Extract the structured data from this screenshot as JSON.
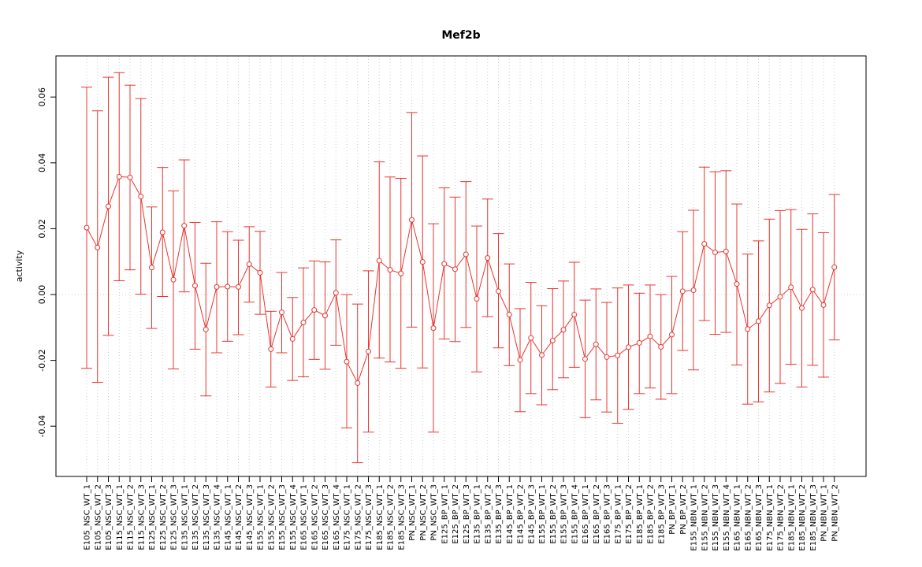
{
  "chart_data": {
    "type": "line",
    "title": "Mef2b",
    "xlabel": "",
    "ylabel": "activity",
    "ylim": [
      -0.055,
      0.072
    ],
    "yticks": [
      -0.04,
      -0.02,
      0.0,
      0.02,
      0.04,
      0.06
    ],
    "ytick_labels": [
      "-0.04",
      "-0.02",
      "0.00",
      "0.02",
      "0.04",
      "0.06"
    ],
    "grid": "vertical dotted at each category; horizontal dotted at zero",
    "colors": {
      "series": "#e8352f",
      "grid": "#cccccc",
      "axis": "#000000"
    },
    "categories": [
      "E105_NSC_WT_1",
      "E105_NSC_WT_2",
      "E105_NSC_WT_3",
      "E115_NSC_WT_1",
      "E115_NSC_WT_2",
      "E115_NSC_WT_3",
      "E125_NSC_WT_1",
      "E125_NSC_WT_2",
      "E125_NSC_WT_3",
      "E135_NSC_WT_1",
      "E135_NSC_WT_2",
      "E135_NSC_WT_3",
      "E135_NSC_WT_4",
      "E145_NSC_WT_1",
      "E145_NSC_WT_2",
      "E145_NSC_WT_3",
      "E155_NSC_WT_1",
      "E155_NSC_WT_2",
      "E155_NSC_WT_3",
      "E155_NSC_WT_4",
      "E165_NSC_WT_1",
      "E165_NSC_WT_2",
      "E165_NSC_WT_3",
      "E165_NSC_WT_4",
      "E175_NSC_WT_1",
      "E175_NSC_WT_2",
      "E175_NSC_WT_3",
      "E185_NSC_WT_1",
      "E185_NSC_WT_2",
      "E185_NSC_WT_3",
      "PN_NSC_WT_1",
      "PN_NSC_WT_2",
      "PN_NSC_WT_3",
      "E125_BP_WT_1",
      "E125_BP_WT_2",
      "E125_BP_WT_3",
      "E135_BP_WT_1",
      "E135_BP_WT_2",
      "E135_BP_WT_3",
      "E145_BP_WT_1",
      "E145_BP_WT_2",
      "E145_BP_WT_3",
      "E155_BP_WT_1",
      "E155_BP_WT_2",
      "E155_BP_WT_3",
      "E155_BP_WT_4",
      "E165_BP_WT_1",
      "E165_BP_WT_2",
      "E165_BP_WT_3",
      "E175_BP_WT_1",
      "E175_BP_WT_2",
      "E185_BP_WT_1",
      "E185_BP_WT_2",
      "E185_BP_WT_3",
      "PN_BP_WT_1",
      "PN_BP_WT_2",
      "E155_NBN_WT_1",
      "E155_NBN_WT_2",
      "E155_NBN_WT_3",
      "E155_NBN_WT_4",
      "E165_NBN_WT_1",
      "E165_NBN_WT_2",
      "E165_NBN_WT_3",
      "E175_NBN_WT_1",
      "E175_NBN_WT_2",
      "E185_NBN_WT_1",
      "E185_NBN_WT_2",
      "E185_NBN_WT_3",
      "PN_NBN_WT_1",
      "PN_NBN_WT_2"
    ],
    "series": [
      {
        "values": [
          0.0203,
          0.0143,
          0.0268,
          0.0358,
          0.0356,
          0.0298,
          0.0082,
          0.0189,
          0.0045,
          0.0209,
          0.0027,
          -0.0106,
          0.0023,
          0.0024,
          0.0023,
          0.0092,
          0.0066,
          -0.0166,
          -0.0054,
          -0.0135,
          -0.0085,
          -0.0047,
          -0.0064,
          0.0005,
          -0.0204,
          -0.0269,
          -0.0173,
          0.0103,
          0.0075,
          0.0064,
          0.0227,
          0.0099,
          -0.0102,
          0.0093,
          0.0077,
          0.0122,
          -0.0013,
          0.0111,
          0.001,
          -0.0061,
          -0.0199,
          -0.0132,
          -0.0184,
          -0.014,
          -0.0107,
          -0.0061,
          -0.0196,
          -0.0151,
          -0.019,
          -0.0185,
          -0.016,
          -0.0147,
          -0.0127,
          -0.0159,
          -0.0122,
          0.001,
          0.0013,
          0.0154,
          0.0128,
          0.0131,
          0.0032,
          -0.0105,
          -0.0081,
          -0.0033,
          -0.0007,
          0.0022,
          -0.0041,
          0.0015,
          -0.0032,
          0.0083
        ],
        "lower": [
          -0.0224,
          -0.0267,
          -0.0124,
          0.0042,
          0.0075,
          0.0001,
          -0.0103,
          -0.0006,
          -0.0226,
          0.0008,
          -0.0166,
          -0.0308,
          -0.0177,
          -0.0142,
          -0.0122,
          -0.0023,
          -0.006,
          -0.0281,
          -0.0177,
          -0.0261,
          -0.025,
          -0.0197,
          -0.0227,
          -0.0154,
          -0.0405,
          -0.0511,
          -0.0418,
          -0.0193,
          -0.0205,
          -0.0224,
          -0.0099,
          -0.0223,
          -0.0418,
          -0.0135,
          -0.0143,
          -0.01,
          -0.0235,
          -0.0067,
          -0.0162,
          -0.0216,
          -0.0356,
          -0.0301,
          -0.0335,
          -0.0289,
          -0.0253,
          -0.0221,
          -0.0374,
          -0.032,
          -0.0357,
          -0.0391,
          -0.0349,
          -0.0301,
          -0.0284,
          -0.0318,
          -0.0301,
          -0.017,
          -0.0229,
          -0.0079,
          -0.0121,
          -0.0115,
          -0.0214,
          -0.0333,
          -0.0326,
          -0.0296,
          -0.027,
          -0.0212,
          -0.0281,
          -0.0215,
          -0.0251,
          -0.0138
        ],
        "upper": [
          0.063,
          0.0558,
          0.066,
          0.0674,
          0.0636,
          0.0595,
          0.0266,
          0.0386,
          0.0315,
          0.0409,
          0.0219,
          0.0095,
          0.0221,
          0.0191,
          0.0165,
          0.0206,
          0.0192,
          -0.0051,
          0.0067,
          -0.0009,
          0.0081,
          0.0102,
          0.0099,
          0.0166,
          0.0,
          -0.0029,
          0.0072,
          0.0403,
          0.0357,
          0.0353,
          0.0553,
          0.0421,
          0.0215,
          0.0324,
          0.0296,
          0.0343,
          0.0208,
          0.029,
          0.0185,
          0.0093,
          -0.0043,
          0.0037,
          -0.0034,
          0.0018,
          0.0041,
          0.0098,
          -0.0017,
          0.0017,
          -0.0024,
          0.002,
          0.0029,
          0.0004,
          0.0029,
          0.0,
          0.0055,
          0.0191,
          0.0256,
          0.0387,
          0.0373,
          0.0376,
          0.0275,
          0.0123,
          0.0163,
          0.0229,
          0.0255,
          0.0258,
          0.0198,
          0.0245,
          0.0188,
          0.0304
        ]
      }
    ]
  }
}
